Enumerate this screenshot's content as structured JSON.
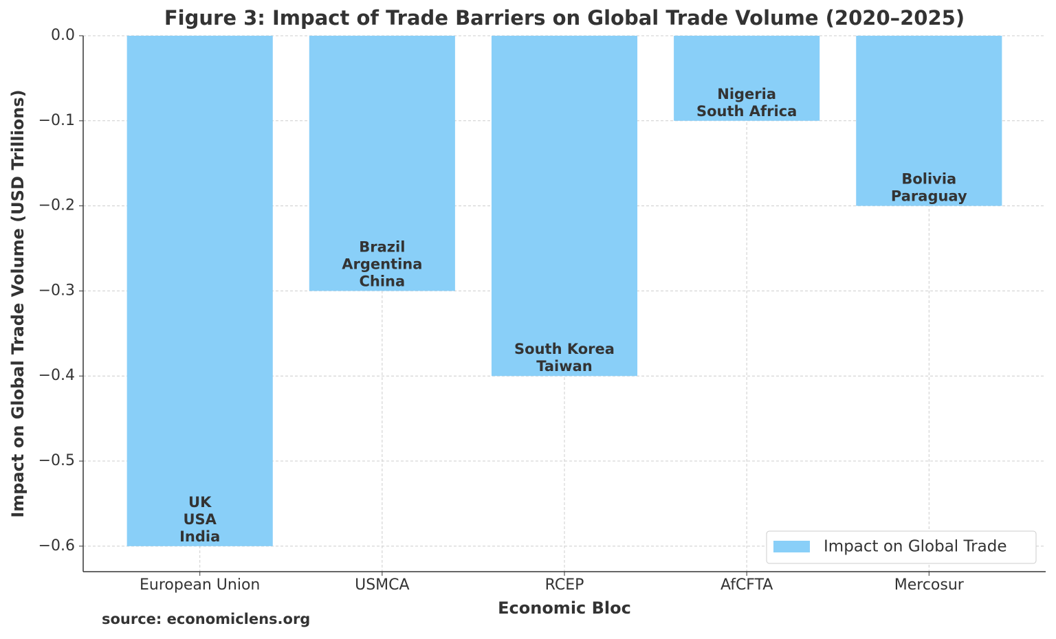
{
  "chart_data": {
    "type": "bar",
    "title": "Figure 3: Impact of Trade Barriers on Global Trade Volume (2020–2025)",
    "x_label": "Economic Bloc",
    "y_label": "Impact on Global Trade Volume (USD Trillions)",
    "source": "source: economiclens.org",
    "categories": [
      "European Union",
      "USMCA",
      "RCEP",
      "AfCFTA",
      "Mercosur"
    ],
    "series": [
      {
        "name": "Impact on Global Trade",
        "color": "#89cff8",
        "values": [
          -0.6,
          -0.3,
          -0.4,
          -0.1,
          -0.2
        ]
      }
    ],
    "annotations": [
      [
        "UK",
        "USA",
        "India"
      ],
      [
        "Brazil",
        "Argentina",
        "China"
      ],
      [
        "South Korea",
        "Taiwan"
      ],
      [
        "Nigeria",
        "South Africa"
      ],
      [
        "Bolivia",
        "Paraguay"
      ]
    ],
    "ylim": [
      -0.63,
      0
    ],
    "yticks": [
      {
        "value": 0,
        "label": "0.0"
      },
      {
        "value": -0.1,
        "label": "−0.1"
      },
      {
        "value": -0.2,
        "label": "−0.2"
      },
      {
        "value": -0.3,
        "label": "−0.3"
      },
      {
        "value": -0.4,
        "label": "−0.4"
      },
      {
        "value": -0.5,
        "label": "−0.5"
      },
      {
        "value": -0.6,
        "label": "−0.6"
      }
    ],
    "grid": true,
    "legend": "lower right"
  }
}
